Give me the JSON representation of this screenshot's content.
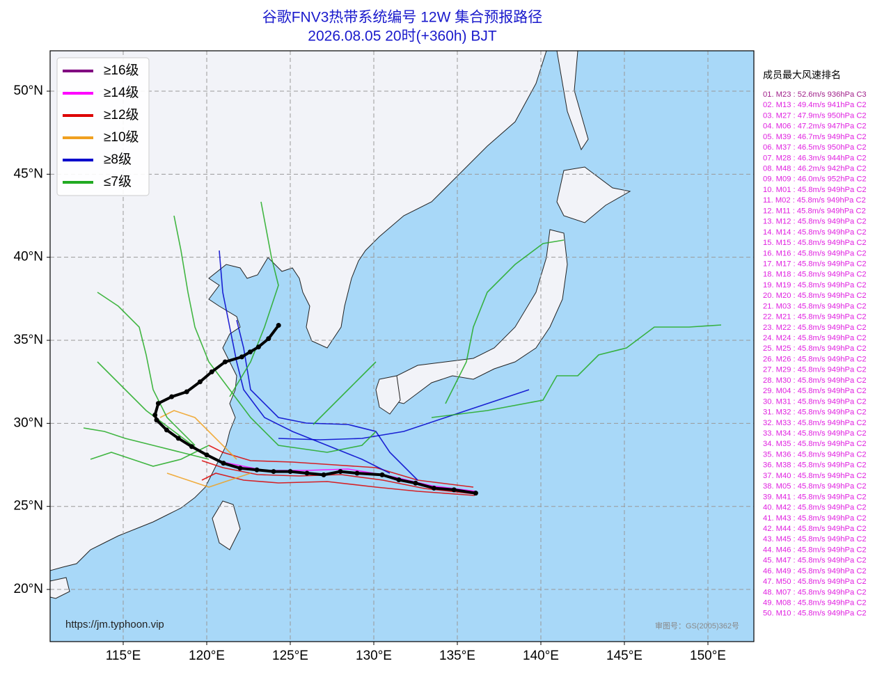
{
  "title": "谷歌FNV3热带系统编号 12W 集合预报路径",
  "subtitle": "2026.08.05 20时(+360h) BJT",
  "map": {
    "xlim": [
      110.625,
      152.75
    ],
    "ylim": [
      16.86,
      52.43
    ],
    "xticks": [
      {
        "value": 115,
        "label": "115°E"
      },
      {
        "value": 120,
        "label": "120°E"
      },
      {
        "value": 125,
        "label": "125°E"
      },
      {
        "value": 130,
        "label": "130°E"
      },
      {
        "value": 135,
        "label": "135°E"
      },
      {
        "value": 140,
        "label": "140°E"
      },
      {
        "value": 145,
        "label": "145°E"
      },
      {
        "value": 150,
        "label": "150°E"
      }
    ],
    "yticks": [
      {
        "value": 20,
        "label": "20°N"
      },
      {
        "value": 25,
        "label": "25°N"
      },
      {
        "value": 30,
        "label": "30°N"
      },
      {
        "value": 35,
        "label": "35°N"
      },
      {
        "value": 40,
        "label": "40°N"
      },
      {
        "value": 45,
        "label": "45°N"
      },
      {
        "value": 50,
        "label": "50°N"
      }
    ],
    "grid": true,
    "land_color": "#f2f3f8",
    "ocean_color": "#a8d8f8"
  },
  "legend": [
    {
      "name": "≥16级",
      "color": "#800080"
    },
    {
      "name": "≥14级",
      "color": "#ff00ff"
    },
    {
      "name": "≥12级",
      "color": "#dd0000"
    },
    {
      "name": "≥10级",
      "color": "#f0a020"
    },
    {
      "name": "≥8级",
      "color": "#0000cc"
    },
    {
      "name": "≤7级",
      "color": "#22aa22"
    }
  ],
  "mean_track": {
    "color": "#000000",
    "lon": [
      136.1,
      134.8,
      133.6,
      132.5,
      131.5,
      130.5,
      129.0,
      128.0,
      127.0,
      126.0,
      125.0,
      124.0,
      123.0,
      122.0,
      121.0,
      120.0,
      119.1,
      118.3,
      117.6,
      117.0,
      116.9,
      117.1,
      117.9,
      118.8,
      119.6,
      120.3,
      121.1,
      122.1,
      122.6,
      123.1,
      123.7,
      124.3
    ],
    "lat": [
      25.8,
      26.0,
      26.1,
      26.4,
      26.6,
      26.9,
      27.0,
      27.1,
      26.9,
      27.0,
      27.1,
      27.1,
      27.2,
      27.3,
      27.6,
      28.1,
      28.6,
      29.1,
      29.6,
      30.2,
      30.5,
      31.2,
      31.6,
      31.9,
      32.5,
      33.1,
      33.7,
      34.0,
      34.3,
      34.6,
      35.1,
      35.9
    ]
  },
  "ranking": {
    "title": "成员最大风速排名",
    "top_color": "#a0208a",
    "color": "#e020e0",
    "items": [
      "01. M23 : 52.6m/s 936hPa C3",
      "02. M13 : 49.4m/s 941hPa C2",
      "03. M27 : 47.9m/s 950hPa C2",
      "04. M06 : 47.2m/s 947hPa C2",
      "05. M39 : 46.7m/s 949hPa C2",
      "06. M37 : 46.5m/s 950hPa C2",
      "07. M28 : 46.3m/s 944hPa C2",
      "08. M48 : 46.2m/s 942hPa C2",
      "09. M09 : 46.0m/s 952hPa C2",
      "10. M01 : 45.8m/s 949hPa C2",
      "11. M02 : 45.8m/s 949hPa C2",
      "12. M11 : 45.8m/s 949hPa C2",
      "13. M12 : 45.8m/s 949hPa C2",
      "14. M14 : 45.8m/s 949hPa C2",
      "15. M15 : 45.8m/s 949hPa C2",
      "16. M16 : 45.8m/s 949hPa C2",
      "17. M17 : 45.8m/s 949hPa C2",
      "18. M18 : 45.8m/s 949hPa C2",
      "19. M19 : 45.8m/s 949hPa C2",
      "20. M20 : 45.8m/s 949hPa C2",
      "21. M03 : 45.8m/s 949hPa C2",
      "22. M21 : 45.8m/s 949hPa C2",
      "23. M22 : 45.8m/s 949hPa C2",
      "24. M24 : 45.8m/s 949hPa C2",
      "25. M25 : 45.8m/s 949hPa C2",
      "26. M26 : 45.8m/s 949hPa C2",
      "27. M29 : 45.8m/s 949hPa C2",
      "28. M30 : 45.8m/s 949hPa C2",
      "29. M04 : 45.8m/s 949hPa C2",
      "30. M31 : 45.8m/s 949hPa C2",
      "31. M32 : 45.8m/s 949hPa C2",
      "32. M33 : 45.8m/s 949hPa C2",
      "33. M34 : 45.8m/s 949hPa C2",
      "34. M35 : 45.8m/s 949hPa C2",
      "35. M36 : 45.8m/s 949hPa C2",
      "36. M38 : 45.8m/s 949hPa C2",
      "37. M40 : 45.8m/s 949hPa C2",
      "38. M05 : 45.8m/s 949hPa C2",
      "39. M41 : 45.8m/s 949hPa C2",
      "40. M42 : 45.8m/s 949hPa C2",
      "41. M43 : 45.8m/s 949hPa C2",
      "42. M44 : 45.8m/s 949hPa C2",
      "43. M45 : 45.8m/s 949hPa C2",
      "44. M46 : 45.8m/s 949hPa C2",
      "45. M47 : 45.8m/s 949hPa C2",
      "46. M49 : 45.8m/s 949hPa C2",
      "47. M50 : 45.8m/s 949hPa C2",
      "48. M07 : 45.8m/s 949hPa C2",
      "49. M08 : 45.8m/s 949hPa C2",
      "50. M10 : 45.8m/s 949hPa C2"
    ]
  },
  "source": "https://jm.typhoon.vip",
  "approval": "审图号：GS(2005)362号"
}
